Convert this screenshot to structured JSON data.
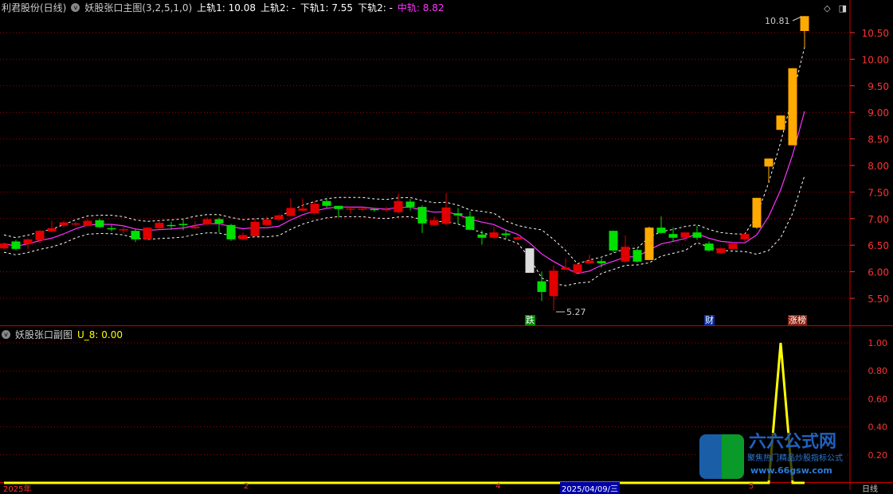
{
  "header": {
    "stock": "利君股份(日线)",
    "indicator": "妖股张口主图(3,2,5,1,0)",
    "upper1": "上轨1: 10.08",
    "upper2": "上轨2: -",
    "lower1": "下轨1: 7.55",
    "lower2": "下轨2: -",
    "mid": "中轨: 8.82"
  },
  "sub_header": {
    "indicator": "妖股张口副图",
    "value": "U_8: 0.00"
  },
  "top_icons": [
    "diamond-icon",
    "panel-toggle-icon"
  ],
  "colors": {
    "up": "#e00000",
    "down": "#00e000",
    "limit_up": "#ffaa00",
    "limit_down": "#dddddd",
    "mid_line": "#ff33ff",
    "band": "#ffffff",
    "grid": "#aa0000",
    "axis": "#ff3333",
    "sub_line": "#ffff00"
  },
  "annotations": {
    "high_label": "10.81",
    "low_label": "5.27"
  },
  "markers": [
    {
      "label": "跌",
      "color": "#008800",
      "index": 44
    },
    {
      "label": "财",
      "color": "#0a2a9a",
      "index": 59
    },
    {
      "label": "涨榜",
      "color": "#8a2010",
      "index": 66
    }
  ],
  "x_axis": [
    {
      "label": "2025年",
      "selected": false
    },
    {
      "label": "2",
      "selected": false
    },
    {
      "label": "4",
      "selected": false
    },
    {
      "label": "2025/04/09/三",
      "selected": true
    },
    {
      "label": "5",
      "selected": false
    },
    {
      "label": "日线",
      "selected": false
    }
  ],
  "logo": {
    "title": "六六公式网",
    "slogan": "聚焦热门精品炒股指标公式",
    "site": "www.66gsw.com"
  },
  "chart_data": [
    {
      "type": "candlestick",
      "y_ticks": [
        "5.50",
        "6.00",
        "6.50",
        "7.00",
        "7.50",
        "8.00",
        "8.50",
        "9.00",
        "9.50",
        "10.00",
        "10.50"
      ],
      "ylim": [
        5.1,
        10.9
      ],
      "grid": true,
      "limit_up_from": [
        54,
        63,
        64,
        65,
        66,
        67
      ],
      "limit_down": [
        44
      ],
      "ohlc": [
        [
          6.44,
          6.53,
          6.55,
          6.42
        ],
        [
          6.57,
          6.43,
          6.6,
          6.4
        ],
        [
          6.52,
          6.61,
          6.63,
          6.42
        ],
        [
          6.59,
          6.77,
          6.79,
          6.54
        ],
        [
          6.76,
          6.82,
          6.96,
          6.74
        ],
        [
          6.87,
          6.93,
          6.96,
          6.83
        ],
        [
          6.89,
          6.91,
          6.94,
          6.85
        ],
        [
          6.86,
          6.96,
          7.0,
          6.86
        ],
        [
          6.97,
          6.84,
          7.0,
          6.82
        ],
        [
          6.82,
          6.81,
          6.88,
          6.76
        ],
        [
          6.79,
          6.8,
          6.84,
          6.72
        ],
        [
          6.77,
          6.61,
          6.8,
          6.56
        ],
        [
          6.61,
          6.83,
          6.84,
          6.6
        ],
        [
          6.82,
          6.92,
          6.96,
          6.8
        ],
        [
          6.88,
          6.87,
          6.94,
          6.79
        ],
        [
          6.9,
          6.89,
          6.98,
          6.78
        ],
        [
          6.82,
          6.85,
          6.95,
          6.8
        ],
        [
          6.89,
          6.99,
          7.02,
          6.88
        ],
        [
          6.99,
          6.91,
          7.02,
          6.74
        ],
        [
          6.88,
          6.61,
          6.9,
          6.58
        ],
        [
          6.61,
          6.69,
          6.74,
          6.6
        ],
        [
          6.67,
          6.94,
          7.0,
          6.66
        ],
        [
          6.88,
          6.98,
          7.04,
          6.86
        ],
        [
          6.98,
          7.06,
          7.08,
          6.96
        ],
        [
          7.05,
          7.2,
          7.38,
          7.04
        ],
        [
          7.15,
          7.19,
          7.38,
          7.14
        ],
        [
          7.1,
          7.28,
          7.33,
          7.08
        ],
        [
          7.33,
          7.24,
          7.37,
          7.2
        ],
        [
          7.24,
          7.18,
          7.24,
          7.02
        ],
        [
          7.17,
          7.19,
          7.22,
          7.09
        ],
        [
          7.17,
          7.19,
          7.21,
          7.14
        ],
        [
          7.18,
          7.16,
          7.2,
          7.13
        ],
        [
          7.16,
          7.18,
          7.22,
          7.13
        ],
        [
          7.12,
          7.33,
          7.47,
          7.1
        ],
        [
          7.32,
          7.22,
          7.37,
          7.15
        ],
        [
          7.22,
          6.91,
          7.25,
          6.73
        ],
        [
          6.88,
          6.97,
          7.04,
          6.87
        ],
        [
          6.9,
          7.21,
          7.48,
          6.88
        ],
        [
          7.1,
          7.06,
          7.2,
          6.9
        ],
        [
          7.04,
          6.79,
          7.14,
          6.78
        ],
        [
          6.7,
          6.64,
          6.78,
          6.51
        ],
        [
          6.64,
          6.74,
          6.85,
          6.62
        ],
        [
          6.72,
          6.69,
          6.8,
          6.62
        ],
        [
          6.61,
          6.65,
          6.68,
          6.59
        ],
        [
          6.44,
          5.98,
          6.44,
          5.98
        ],
        [
          5.82,
          5.62,
          6.0,
          5.45
        ],
        [
          5.54,
          6.02,
          6.12,
          5.27
        ],
        [
          6.04,
          6.08,
          6.25,
          6.04
        ],
        [
          5.98,
          6.14,
          6.14,
          5.98
        ],
        [
          6.16,
          6.21,
          6.32,
          6.16
        ],
        [
          6.2,
          6.16,
          6.25,
          6.08
        ],
        [
          6.77,
          6.4,
          6.77,
          6.36
        ],
        [
          6.19,
          6.47,
          6.68,
          6.17
        ],
        [
          6.41,
          6.19,
          6.43,
          6.17
        ],
        [
          6.22,
          6.83,
          6.85,
          6.22
        ],
        [
          6.83,
          6.73,
          7.04,
          6.72
        ],
        [
          6.71,
          6.64,
          6.83,
          6.57
        ],
        [
          6.64,
          6.74,
          6.74,
          6.57
        ],
        [
          6.74,
          6.64,
          6.86,
          6.6
        ],
        [
          6.53,
          6.4,
          6.57,
          6.38
        ],
        [
          6.35,
          6.44,
          6.46,
          6.34
        ],
        [
          6.43,
          6.53,
          6.55,
          6.42
        ],
        [
          6.61,
          6.71,
          6.71,
          6.57
        ],
        [
          6.83,
          7.39,
          7.39,
          6.81
        ],
        [
          7.98,
          8.13,
          8.13,
          7.68
        ],
        [
          8.67,
          8.94,
          8.94,
          8.67
        ],
        [
          8.38,
          9.83,
          9.83,
          8.38
        ],
        [
          10.53,
          10.81,
          10.81,
          10.22
        ]
      ]
    },
    {
      "type": "line",
      "name": "U_8",
      "y_ticks": [
        "0.20",
        "0.40",
        "0.60",
        "0.80",
        "1.00"
      ],
      "ylim": [
        0,
        1.1
      ],
      "spike_index": 65,
      "values_note_free": true
    }
  ]
}
